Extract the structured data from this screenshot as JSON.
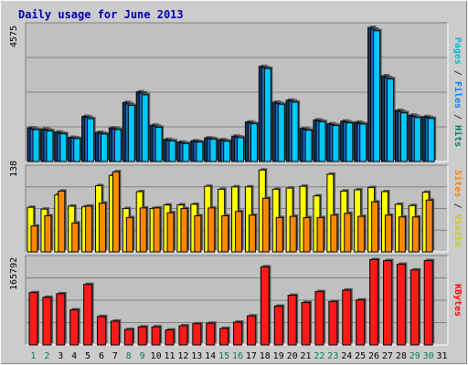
{
  "chart_data": {
    "type": "bar",
    "title": "Daily usage for June 2013",
    "categories": [
      "1",
      "2",
      "3",
      "4",
      "5",
      "6",
      "7",
      "8",
      "9",
      "10",
      "11",
      "12",
      "13",
      "14",
      "15",
      "16",
      "17",
      "18",
      "19",
      "20",
      "21",
      "22",
      "23",
      "24",
      "25",
      "26",
      "27",
      "28",
      "29",
      "30",
      "31"
    ],
    "weekend_days": [
      "1",
      "2",
      "8",
      "9",
      "15",
      "16",
      "22",
      "23",
      "29",
      "30"
    ],
    "panels": [
      {
        "id": "pages-files-hits",
        "max_label": "4575",
        "ylim": [
          0,
          4575
        ],
        "axis_labels": [
          {
            "text": "Pages",
            "color": "#00c0d0"
          },
          {
            "text": " / ",
            "color": "#333333"
          },
          {
            "text": "Files",
            "color": "#0080ff"
          },
          {
            "text": " / ",
            "color": "#333333"
          },
          {
            "text": "Hits",
            "color": "#00806a"
          }
        ],
        "series": [
          {
            "name": "Hits",
            "color": "#0f3d66",
            "values": [
              1140,
              1100,
              1000,
              820,
              1530,
              990,
              1140,
              2000,
              2360,
              1230,
              750,
              660,
              700,
              800,
              740,
              860,
              1340,
              3220,
              2010,
              2080,
              1120,
              1410,
              1280,
              1370,
              1330,
              4540,
              2900,
              1730,
              1570,
              1520,
              null
            ]
          },
          {
            "name": "Files",
            "color": "#1e6fd0",
            "values": [
              1100,
              1070,
              960,
              800,
              1500,
              960,
              1110,
              1950,
              2320,
              1200,
              720,
              630,
              680,
              780,
              710,
              830,
              1310,
              3180,
              1970,
              2050,
              1090,
              1380,
              1250,
              1340,
              1300,
              4480,
              2840,
              1690,
              1530,
              1490,
              null
            ]
          },
          {
            "name": "Pages",
            "color": "#00c8ff",
            "values": [
              1080,
              1040,
              940,
              780,
              1450,
              930,
              1080,
              1900,
              2260,
              1160,
              700,
              610,
              660,
              760,
              690,
              810,
              1280,
              3150,
              1940,
              2010,
              1060,
              1350,
              1220,
              1310,
              1270,
              4430,
              2800,
              1650,
              1490,
              1460,
              null
            ]
          }
        ]
      },
      {
        "id": "visits-sites",
        "max_label": "138",
        "ylim": [
          0,
          138
        ],
        "axis_labels": [
          {
            "text": "Sites",
            "color": "#ff8000"
          },
          {
            "text": " / ",
            "color": "#333333"
          },
          {
            "text": "Visits",
            "color": "#cccc00"
          }
        ],
        "series": [
          {
            "name": "Visits",
            "color": "#ffff00",
            "values": [
              74,
              71,
              95,
              76,
              75,
              110,
              127,
              72,
              100,
              72,
              78,
              78,
              79,
              109,
              104,
              108,
              108,
              136,
              104,
              106,
              109,
              93,
              129,
              101,
              103,
              107,
              100,
              79,
              77,
              99,
              null
            ]
          },
          {
            "name": "Sites",
            "color": "#ff8800",
            "values": [
              43,
              60,
              101,
              48,
              76,
              81,
              133,
              57,
              73,
              73,
              65,
              72,
              60,
              73,
              60,
              67,
              61,
              89,
              57,
              59,
              57,
              57,
              61,
              64,
              59,
              83,
              61,
              58,
              58,
              86,
              null
            ]
          }
        ]
      },
      {
        "id": "kbytes",
        "max_label": "165792",
        "ylim": [
          0,
          165792
        ],
        "axis_labels": [
          {
            "text": "KBytes",
            "color": "#ff0000"
          }
        ],
        "series": [
          {
            "name": "KBytes",
            "color": "#ff1a1a",
            "values": [
              101000,
              92000,
              99000,
              68000,
              117000,
              55000,
              46000,
              30000,
              35000,
              35000,
              29000,
              37000,
              41000,
              42000,
              32000,
              44000,
              56000,
              151000,
              75000,
              96000,
              82000,
              103000,
              84000,
              106000,
              87000,
              165000,
              163000,
              156000,
              145000,
              163000,
              null
            ]
          }
        ]
      }
    ]
  }
}
